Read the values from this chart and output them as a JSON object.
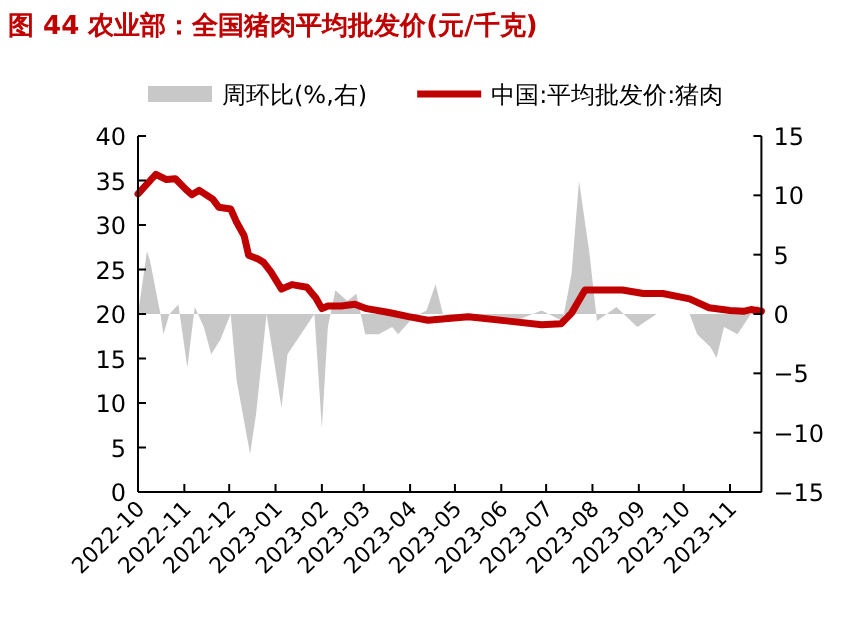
{
  "chart_data": {
    "type": "line",
    "title": "图 44  农业部：全国猪肉平均批发价(元/千克)",
    "legend": "top",
    "xlim": [
      "2022-10-01",
      "2023-11-22"
    ],
    "xticks": [
      "2022-10",
      "2022-11",
      "2022-12",
      "2023-01",
      "2023-02",
      "2023-03",
      "2023-04",
      "2023-05",
      "2023-06",
      "2023-07",
      "2023-08",
      "2023-09",
      "2023-10",
      "2023-11"
    ],
    "ylim": [
      0,
      40
    ],
    "yticks": [
      0,
      5,
      10,
      15,
      20,
      25,
      30,
      35,
      40
    ],
    "y2lim": [
      -15,
      15
    ],
    "y2ticks": [
      -15,
      -10,
      -5,
      0,
      5,
      10,
      15
    ],
    "series": [
      {
        "name": "周环比(%,右)",
        "type": "area",
        "axis": "y2",
        "color": "#c8c8c8",
        "x": [
          "2022-10-01",
          "2022-10-07",
          "2022-10-09",
          "2022-10-16",
          "2022-10-18",
          "2022-10-22",
          "2022-10-28",
          "2022-11-03",
          "2022-11-08",
          "2022-11-14",
          "2022-11-19",
          "2022-11-25",
          "2022-12-02",
          "2022-12-06",
          "2022-12-15",
          "2022-12-19",
          "2022-12-26",
          "2023-01-05",
          "2023-01-09",
          "2023-01-27",
          "2023-02-01",
          "2023-02-05",
          "2023-02-10",
          "2023-02-18",
          "2023-02-24",
          "2023-03-02",
          "2023-03-11",
          "2023-03-20",
          "2023-03-24",
          "2023-04-03",
          "2023-04-12",
          "2023-04-18",
          "2023-04-23",
          "2023-05-10",
          "2023-06-06",
          "2023-06-28",
          "2023-07-12",
          "2023-07-18",
          "2023-07-23",
          "2023-07-30",
          "2023-08-04",
          "2023-08-17",
          "2023-08-31",
          "2023-09-13",
          "2023-10-05",
          "2023-10-10",
          "2023-10-19",
          "2023-10-23",
          "2023-10-28",
          "2023-11-06",
          "2023-11-15",
          "2023-11-20"
        ],
        "values": [
          0,
          5.3,
          4.5,
          0,
          -1.7,
          0,
          0.8,
          -4.5,
          0.6,
          -1.1,
          -3.4,
          -2.2,
          0,
          -5.6,
          -11.8,
          -8.4,
          0,
          -7.9,
          -3.4,
          0,
          -9.6,
          -1.1,
          2.0,
          1.1,
          1.7,
          -1.7,
          -1.7,
          -1.1,
          -1.7,
          -0.3,
          0.3,
          2.5,
          0,
          -0.3,
          -0.8,
          0.3,
          -0.6,
          3.4,
          11.2,
          5.1,
          -0.6,
          0.6,
          -1.1,
          0,
          0,
          -1.7,
          -2.8,
          -3.7,
          -1.1,
          -1.7,
          0,
          0.8
        ]
      },
      {
        "name": "中国:平均批发价:猪肉",
        "color": "#c00000",
        "x": [
          "2022-10-01",
          "2022-10-13",
          "2022-10-20",
          "2022-10-26",
          "2022-11-02",
          "2022-11-06",
          "2022-11-11",
          "2022-11-20",
          "2022-11-24",
          "2022-12-02",
          "2022-12-06",
          "2022-12-11",
          "2022-12-14",
          "2022-12-20",
          "2022-12-24",
          "2022-12-29",
          "2023-01-05",
          "2023-01-12",
          "2023-01-22",
          "2023-01-28",
          "2023-02-01",
          "2023-02-05",
          "2023-02-14",
          "2023-02-23",
          "2023-03-03",
          "2023-03-17",
          "2023-03-31",
          "2023-04-13",
          "2023-05-10",
          "2023-06-06",
          "2023-06-28",
          "2023-07-11",
          "2023-07-18",
          "2023-07-27",
          "2023-08-08",
          "2023-08-21",
          "2023-09-04",
          "2023-09-17",
          "2023-10-05",
          "2023-10-18",
          "2023-11-01",
          "2023-11-10",
          "2023-11-15",
          "2023-11-22"
        ],
        "values": [
          33.5,
          35.7,
          35.1,
          35.2,
          34.0,
          33.4,
          33.9,
          32.9,
          32.0,
          31.8,
          30.3,
          28.8,
          26.6,
          26.2,
          25.8,
          24.7,
          22.8,
          23.3,
          23.0,
          21.8,
          20.6,
          20.9,
          20.9,
          21.1,
          20.6,
          20.2,
          19.7,
          19.3,
          19.7,
          19.2,
          18.8,
          18.9,
          20.1,
          22.7,
          22.7,
          22.7,
          22.3,
          22.3,
          21.7,
          20.7,
          20.4,
          20.3,
          20.5,
          20.3
        ]
      }
    ]
  }
}
